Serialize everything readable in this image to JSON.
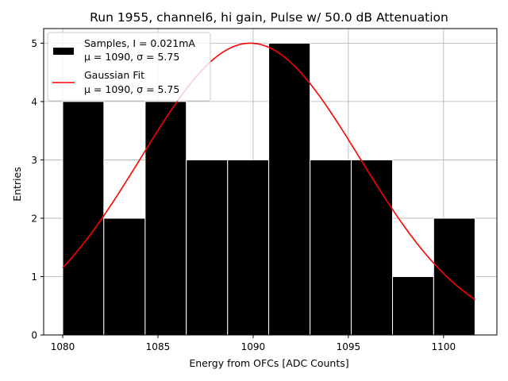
{
  "chart_data": {
    "type": "bar",
    "title": "Run 1955, channel6, hi gain, Pulse w/ 50.0 dB Attenuation",
    "xlabel": "Energy from OFCs [ADC Counts]",
    "ylabel": "Entries",
    "xlim": [
      1079.0,
      1102.8
    ],
    "ylim": [
      0,
      5.25
    ],
    "xticks": [
      1080,
      1085,
      1090,
      1095,
      1100
    ],
    "yticks": [
      0,
      1,
      2,
      3,
      4,
      5
    ],
    "grid": true,
    "legend_position": "upper-left",
    "histogram": {
      "name": "Samples, I = 0.021mA",
      "stat_line": "μ = 1090, σ = 5.75",
      "color": "#000000",
      "edgecolor": "#ffffff",
      "bin_edges": [
        1080.0,
        1082.16,
        1084.33,
        1086.49,
        1088.66,
        1090.82,
        1092.99,
        1095.15,
        1097.32,
        1099.48,
        1101.65
      ],
      "counts": [
        4,
        2,
        4,
        3,
        3,
        5,
        3,
        3,
        1,
        2
      ]
    },
    "fit": {
      "name": "Gaussian Fit",
      "stat_line": "μ = 1090, σ = 5.75",
      "color": "#ff0000",
      "amplitude": 5.0,
      "mean": 1089.85,
      "sigma": 5.75,
      "x_range": [
        1080.0,
        1101.65
      ]
    }
  }
}
